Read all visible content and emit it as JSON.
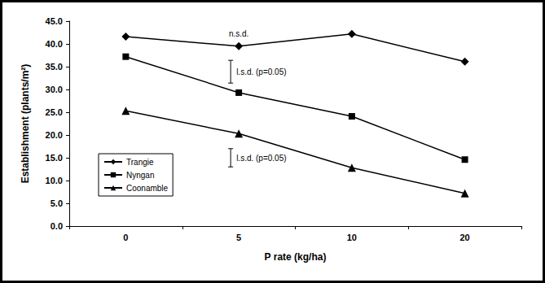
{
  "chart_data": {
    "type": "line",
    "x_label": "P rate (kg/ha)",
    "y_label": "Establishment (plants/m²)",
    "categories": [
      "0",
      "5",
      "10",
      "20"
    ],
    "series": [
      {
        "name": "Trangie",
        "color": "#000000",
        "marker": "diamond",
        "values": [
          41.6,
          39.5,
          42.2,
          36.1
        ]
      },
      {
        "name": "Nyngan",
        "color": "#000000",
        "marker": "square",
        "values": [
          37.2,
          29.3,
          24.1,
          14.6
        ]
      },
      {
        "name": "Coonamble",
        "color": "#000000",
        "marker": "triangle",
        "values": [
          25.3,
          20.3,
          12.8,
          7.2
        ]
      }
    ],
    "ylim": [
      0,
      45
    ],
    "yticks": [
      {
        "value": 0,
        "label": "0.0"
      },
      {
        "value": 5,
        "label": "5.0"
      },
      {
        "value": 10,
        "label": "10.0"
      },
      {
        "value": 15,
        "label": "15.0"
      },
      {
        "value": 20,
        "label": "20.0"
      },
      {
        "value": 25,
        "label": "25.0"
      },
      {
        "value": 30,
        "label": "30.0"
      },
      {
        "value": 35,
        "label": "35.0"
      },
      {
        "value": 40,
        "label": "40.0"
      },
      {
        "value": 45,
        "label": "45.0"
      }
    ],
    "grid": false,
    "legend": "lower left",
    "annotations": [
      {
        "text": "n.s.d.",
        "x": "5",
        "series": "Trangie"
      }
    ],
    "lsd": [
      {
        "label": "l.s.d. (p=0.05)",
        "x": "5",
        "low": 31.4,
        "high": 36.4
      },
      {
        "label": "l.s.d. (p=0.05)",
        "x": "5",
        "low": 13.0,
        "high": 17.0
      }
    ]
  }
}
